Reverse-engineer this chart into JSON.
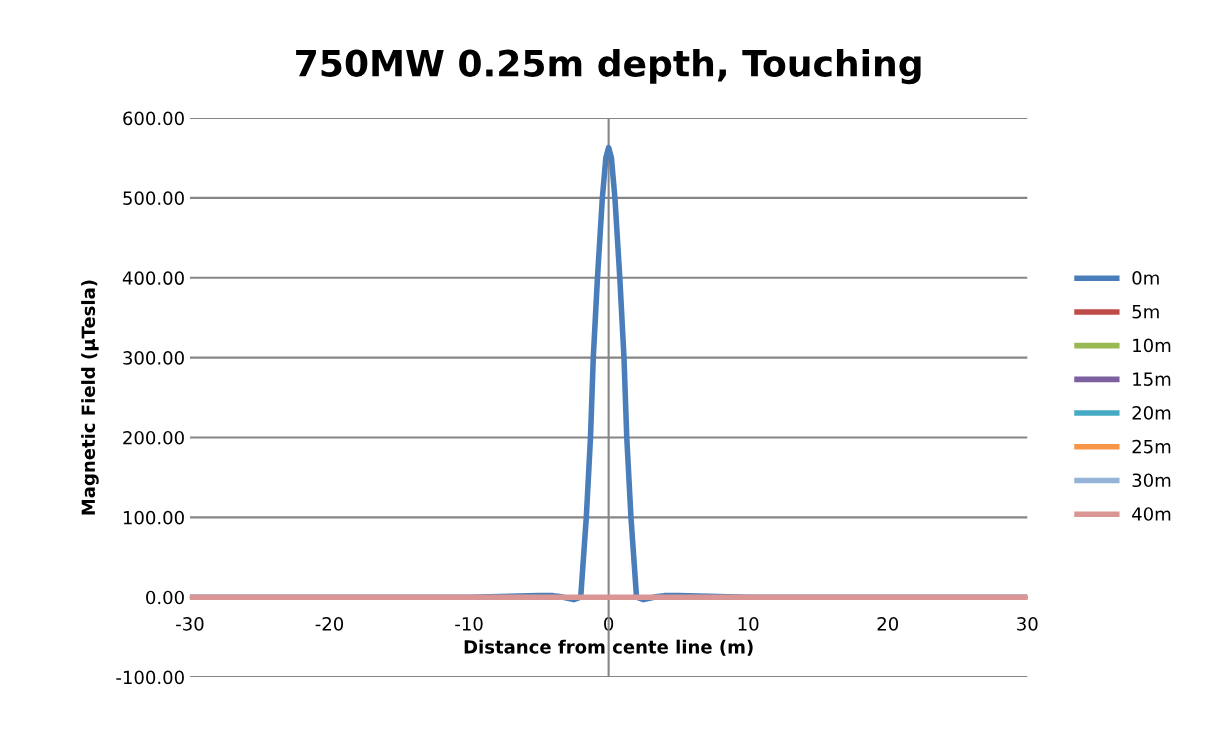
{
  "chart_data": {
    "type": "line",
    "title": "750MW 0.25m depth, Touching",
    "xlabel": "Distance from cente line (m)",
    "ylabel": "Magnetic Field (µTesla)",
    "xlim": [
      -30,
      30
    ],
    "xticks": [
      -30,
      -20,
      -10,
      0,
      10,
      20,
      30
    ],
    "ylim": [
      -100,
      600
    ],
    "yticks": [
      {
        "value": -100,
        "label": "-100.00"
      },
      {
        "value": 0,
        "label": "0.00"
      },
      {
        "value": 100,
        "label": "100.00"
      },
      {
        "value": 200,
        "label": "200.00"
      },
      {
        "value": 300,
        "label": "300.00"
      },
      {
        "value": 400,
        "label": "400.00"
      },
      {
        "value": 500,
        "label": "500.00"
      },
      {
        "value": 600,
        "label": "600.00"
      }
    ],
    "grid": "y",
    "legend": "right",
    "marker": "none",
    "line_style": "solid",
    "ref_lines": [
      {
        "axis": "x",
        "value": 0,
        "color": "#868686"
      }
    ],
    "series": [
      {
        "name": "0m",
        "color": "#4a7ebb",
        "x": [
          -30,
          -10,
          -5,
          -4,
          -3.5,
          -3,
          -2.5,
          -2,
          -1.6,
          -1.3,
          -1.1,
          -0.8,
          -0.45,
          -0.2,
          0,
          0.2,
          0.45,
          0.8,
          1.1,
          1.3,
          1.6,
          2,
          2.5,
          3,
          3.5,
          4,
          5,
          10,
          30
        ],
        "values": [
          0,
          0,
          2,
          2,
          1,
          -1,
          -3,
          0,
          100,
          200,
          300,
          400,
          500,
          550,
          563,
          550,
          500,
          400,
          300,
          200,
          100,
          0,
          -3,
          -1,
          1,
          2,
          2,
          0,
          0
        ]
      },
      {
        "name": "5m",
        "color": "#be4b48"
      },
      {
        "name": "10m",
        "color": "#98b954"
      },
      {
        "name": "15m",
        "color": "#7d60a0"
      },
      {
        "name": "20m",
        "color": "#46aac5"
      },
      {
        "name": "25m",
        "color": "#f79646"
      },
      {
        "name": "30m",
        "color": "#95b3d7"
      },
      {
        "name": "40m",
        "color": "#d99694",
        "x": [
          -30,
          30
        ],
        "values": [
          0,
          0
        ]
      }
    ]
  }
}
